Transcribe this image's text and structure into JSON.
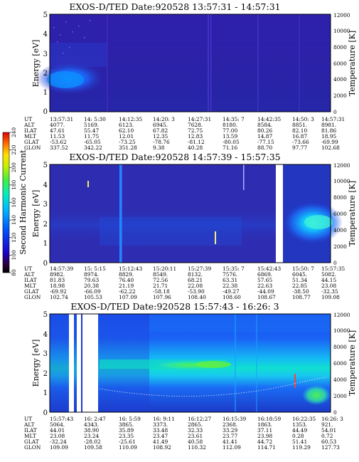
{
  "figure": {
    "colorbar_label": "Second Harmonic Current",
    "colorbar_ticks": [
      "80",
      "100",
      "120",
      "140",
      "160",
      "180",
      "200",
      "220",
      "240"
    ]
  },
  "chart_data": [
    {
      "type": "heatmap",
      "title": "EXOS-D/TED   Date:920528   13:57:31 - 14:57:31",
      "ylabel": "Energy [eV]",
      "ylabel_right": "Temperature [K]",
      "ylim": [
        0,
        5
      ],
      "ylim_right": [
        0,
        12000
      ],
      "yticks": [
        "0",
        "1",
        "2",
        "3",
        "4",
        "5"
      ],
      "yticks_right": [
        "0",
        "2000",
        "4000",
        "6000",
        "8000",
        "10000",
        "12000"
      ],
      "grid": false,
      "ephemeris": {
        "row_labels": [
          "UT",
          "ALT",
          "ILAT",
          "MLT",
          "GLAT",
          "GLON"
        ],
        "columns": [
          [
            "13:57:31",
            "4077.",
            "47.61",
            "11.53",
            "-53.62",
            "337.52"
          ],
          [
            "14: 5:30",
            "5169.",
            "55.47",
            "11.75",
            "-65.05",
            "342.22"
          ],
          [
            "14:12:35",
            "6123.",
            "62.10",
            "12.01",
            "-73.25",
            "351.28"
          ],
          [
            "14:20: 3",
            "6945.",
            "67.82",
            "12.35",
            "-78.76",
            "9.38"
          ],
          [
            "14:27:31",
            "7628.",
            "72.75",
            "12.83",
            "-81.12",
            "40.28"
          ],
          [
            "14:35: 7",
            "8180.",
            "77.00",
            "13.59",
            "-80.05",
            "71.16"
          ],
          [
            "14:42:35",
            "8584.",
            "80.26",
            "14.87",
            "-77.15",
            "88.70"
          ],
          [
            "14:50: 3",
            "8851.",
            "82.10",
            "16.87",
            "-73.66",
            "97.77"
          ],
          [
            "14:57:31",
            "8981.",
            "81.86",
            "18.95",
            "-69.99",
            "102.68"
          ]
        ]
      }
    },
    {
      "type": "heatmap",
      "title": "EXOS-D/TED   Date:920528   14:57:39 - 15:57:35",
      "ylabel": "Energy [eV]",
      "ylabel_right": "Temperature [K]",
      "ylim": [
        0,
        5
      ],
      "ylim_right": [
        0,
        12000
      ],
      "yticks": [
        "0",
        "1",
        "2",
        "3",
        "4",
        "5"
      ],
      "yticks_right": [
        "0",
        "2000",
        "4000",
        "6000",
        "8000",
        "10000",
        "12000"
      ],
      "grid": false,
      "ephemeris": {
        "row_labels": [
          "UT",
          "ALT",
          "ILAT",
          "MLT",
          "GLAT",
          "GLON"
        ],
        "columns": [
          [
            "14:57:39",
            "8982.",
            "81.83",
            "18.98",
            "-69.92",
            "102.74"
          ],
          [
            "15: 5:15",
            "8974.",
            "79.63",
            "20.38",
            "-66.09",
            "105.53"
          ],
          [
            "15:12:43",
            "8829.",
            "76.40",
            "21.19",
            "-62.22",
            "107.09"
          ],
          [
            "15:20:11",
            "8549.",
            "72.56",
            "21.71",
            "-58.18",
            "107.96"
          ],
          [
            "15:27:39",
            "8132.",
            "68.21",
            "22.08",
            "-53.90",
            "108.40"
          ],
          [
            "15:35: 7",
            "7576.",
            "63.31",
            "22.38",
            "-49.27",
            "108.60"
          ],
          [
            "15:42:43",
            "6869.",
            "57.65",
            "22.63",
            "-44.09",
            "108.67"
          ],
          [
            "15:50: 7",
            "6045.",
            "51.34",
            "22.85",
            "-38.50",
            "108.77"
          ],
          [
            "15:57:35",
            "5082.",
            "44.15",
            "23.08",
            "-32.35",
            "109.08"
          ]
        ]
      }
    },
    {
      "type": "heatmap",
      "title": "EXOS-D/TED   Date:920528   15:57:43 - 16:26: 3",
      "ylabel": "Energy [eV]",
      "ylabel_right": "Temperature [K]",
      "ylim": [
        0,
        5
      ],
      "ylim_right": [
        0,
        12000
      ],
      "yticks": [
        "0",
        "1",
        "2",
        "3",
        "4",
        "5"
      ],
      "yticks_right": [
        "0",
        "2000",
        "4000",
        "6000",
        "8000",
        "10000",
        "12000"
      ],
      "grid": false,
      "ephemeris": {
        "row_labels": [
          "UT",
          "ALT",
          "ILAT",
          "MLT",
          "GLAT",
          "GLON"
        ],
        "columns": [
          [
            "15:57:43",
            "5064.",
            "44.01",
            "23.08",
            "-32.24",
            "109.09"
          ],
          [
            "16: 2:47",
            "4343.",
            "38.90",
            "23.24",
            "-28.02",
            "109.58"
          ],
          [
            "16: 5:59",
            "3865.",
            "35.89",
            "23.35",
            "-25.61",
            "110.09"
          ],
          [
            "16: 9:11",
            "3373.",
            "33.48",
            "23.47",
            "41.49",
            "108.92"
          ],
          [
            "16:12:27",
            "2865.",
            "32.33",
            "23.61",
            "40.58",
            "110.32"
          ],
          [
            "16:15:39",
            "2368.",
            "33.29",
            "23.77",
            "41.41",
            "112.09"
          ],
          [
            "16:18:59",
            "1863.",
            "37.11",
            "23.98",
            "44.72",
            "114.71"
          ],
          [
            "16:22:35",
            "1353.",
            "44.49",
            "0.28",
            "51.41",
            "119.29"
          ],
          [
            "16:26: 3",
            "921.",
            "54.01",
            "0.72",
            "60.53",
            "127.73"
          ]
        ]
      }
    }
  ]
}
